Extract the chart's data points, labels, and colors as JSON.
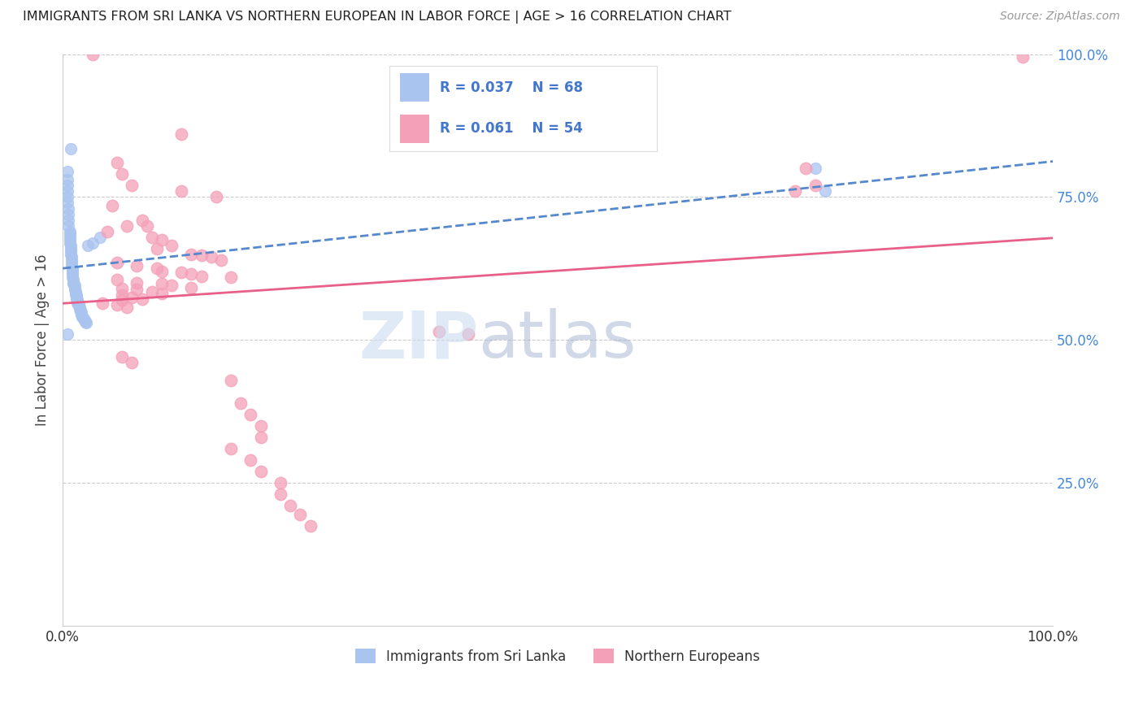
{
  "title": "IMMIGRANTS FROM SRI LANKA VS NORTHERN EUROPEAN IN LABOR FORCE | AGE > 16 CORRELATION CHART",
  "source": "Source: ZipAtlas.com",
  "ylabel": "In Labor Force | Age > 16",
  "xlim": [
    0.0,
    1.0
  ],
  "ylim": [
    0.0,
    1.0
  ],
  "legend_labels": [
    "Immigrants from Sri Lanka",
    "Northern Europeans"
  ],
  "sri_lanka_color": "#aac4f0",
  "northern_eu_color": "#f4a0b8",
  "sri_lanka_line_color": "#5588cc",
  "northern_eu_line_color": "#e8608a",
  "R_sri_lanka": "0.037",
  "N_sri_lanka": "68",
  "R_northern_eu": "0.061",
  "N_northern_eu": "54",
  "legend_text_color": "#4477cc",
  "right_tick_color": "#4488dd",
  "sri_lanka_scatter": [
    [
      0.008,
      0.835
    ],
    [
      0.005,
      0.795
    ],
    [
      0.005,
      0.78
    ],
    [
      0.005,
      0.77
    ],
    [
      0.005,
      0.76
    ],
    [
      0.005,
      0.75
    ],
    [
      0.005,
      0.74
    ],
    [
      0.006,
      0.73
    ],
    [
      0.006,
      0.72
    ],
    [
      0.006,
      0.71
    ],
    [
      0.006,
      0.7
    ],
    [
      0.007,
      0.69
    ],
    [
      0.007,
      0.685
    ],
    [
      0.007,
      0.68
    ],
    [
      0.007,
      0.675
    ],
    [
      0.007,
      0.67
    ],
    [
      0.008,
      0.665
    ],
    [
      0.008,
      0.66
    ],
    [
      0.008,
      0.655
    ],
    [
      0.008,
      0.65
    ],
    [
      0.009,
      0.645
    ],
    [
      0.009,
      0.64
    ],
    [
      0.009,
      0.635
    ],
    [
      0.009,
      0.63
    ],
    [
      0.01,
      0.625
    ],
    [
      0.01,
      0.62
    ],
    [
      0.01,
      0.615
    ],
    [
      0.01,
      0.61
    ],
    [
      0.011,
      0.605
    ],
    [
      0.011,
      0.6
    ],
    [
      0.011,
      0.598
    ],
    [
      0.012,
      0.595
    ],
    [
      0.012,
      0.59
    ],
    [
      0.012,
      0.588
    ],
    [
      0.013,
      0.585
    ],
    [
      0.013,
      0.582
    ],
    [
      0.013,
      0.58
    ],
    [
      0.014,
      0.578
    ],
    [
      0.014,
      0.575
    ],
    [
      0.014,
      0.572
    ],
    [
      0.015,
      0.57
    ],
    [
      0.015,
      0.568
    ],
    [
      0.015,
      0.565
    ],
    [
      0.016,
      0.562
    ],
    [
      0.016,
      0.56
    ],
    [
      0.017,
      0.558
    ],
    [
      0.017,
      0.555
    ],
    [
      0.018,
      0.552
    ],
    [
      0.018,
      0.55
    ],
    [
      0.019,
      0.548
    ],
    [
      0.019,
      0.545
    ],
    [
      0.02,
      0.542
    ],
    [
      0.02,
      0.54
    ],
    [
      0.021,
      0.538
    ],
    [
      0.022,
      0.535
    ],
    [
      0.023,
      0.532
    ],
    [
      0.024,
      0.53
    ],
    [
      0.025,
      0.665
    ],
    [
      0.03,
      0.67
    ],
    [
      0.038,
      0.68
    ],
    [
      0.005,
      0.51
    ],
    [
      0.76,
      0.8
    ],
    [
      0.77,
      0.76
    ]
  ],
  "northern_eu_scatter": [
    [
      0.03,
      1.0
    ],
    [
      0.97,
      0.995
    ],
    [
      0.12,
      0.86
    ],
    [
      0.055,
      0.81
    ],
    [
      0.06,
      0.79
    ],
    [
      0.07,
      0.77
    ],
    [
      0.12,
      0.76
    ],
    [
      0.155,
      0.75
    ],
    [
      0.05,
      0.735
    ],
    [
      0.08,
      0.71
    ],
    [
      0.065,
      0.7
    ],
    [
      0.085,
      0.7
    ],
    [
      0.045,
      0.69
    ],
    [
      0.09,
      0.68
    ],
    [
      0.1,
      0.675
    ],
    [
      0.11,
      0.665
    ],
    [
      0.095,
      0.66
    ],
    [
      0.13,
      0.65
    ],
    [
      0.14,
      0.648
    ],
    [
      0.15,
      0.645
    ],
    [
      0.16,
      0.64
    ],
    [
      0.055,
      0.635
    ],
    [
      0.075,
      0.63
    ],
    [
      0.095,
      0.625
    ],
    [
      0.1,
      0.62
    ],
    [
      0.12,
      0.618
    ],
    [
      0.13,
      0.615
    ],
    [
      0.14,
      0.612
    ],
    [
      0.17,
      0.61
    ],
    [
      0.055,
      0.605
    ],
    [
      0.075,
      0.6
    ],
    [
      0.1,
      0.598
    ],
    [
      0.11,
      0.595
    ],
    [
      0.13,
      0.592
    ],
    [
      0.06,
      0.59
    ],
    [
      0.075,
      0.588
    ],
    [
      0.09,
      0.585
    ],
    [
      0.1,
      0.582
    ],
    [
      0.06,
      0.578
    ],
    [
      0.07,
      0.575
    ],
    [
      0.08,
      0.572
    ],
    [
      0.06,
      0.57
    ],
    [
      0.04,
      0.565
    ],
    [
      0.055,
      0.562
    ],
    [
      0.065,
      0.558
    ],
    [
      0.38,
      0.515
    ],
    [
      0.41,
      0.51
    ],
    [
      0.06,
      0.47
    ],
    [
      0.07,
      0.46
    ],
    [
      0.17,
      0.43
    ],
    [
      0.18,
      0.39
    ],
    [
      0.19,
      0.37
    ],
    [
      0.2,
      0.35
    ],
    [
      0.2,
      0.33
    ],
    [
      0.17,
      0.31
    ],
    [
      0.19,
      0.29
    ],
    [
      0.2,
      0.27
    ],
    [
      0.22,
      0.25
    ],
    [
      0.22,
      0.23
    ],
    [
      0.23,
      0.21
    ],
    [
      0.24,
      0.195
    ],
    [
      0.25,
      0.175
    ],
    [
      0.75,
      0.8
    ],
    [
      0.76,
      0.77
    ],
    [
      0.74,
      0.76
    ]
  ]
}
